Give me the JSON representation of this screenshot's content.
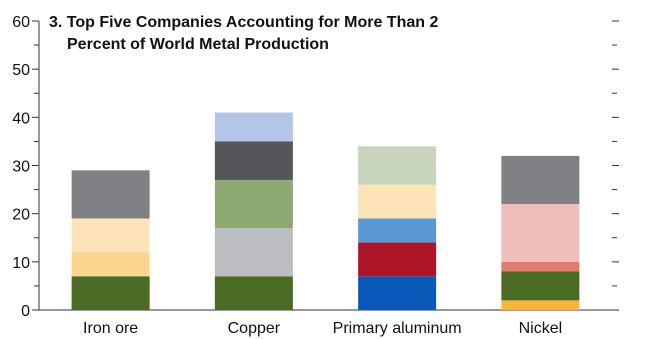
{
  "chart_data": {
    "type": "bar",
    "stacked": true,
    "title_lines": [
      "3. Top Five Companies Accounting for More Than 2",
      "Percent of World Metal Production"
    ],
    "xlabel": "",
    "ylabel": "",
    "ylim": [
      0,
      60
    ],
    "yticks": [
      0,
      10,
      20,
      30,
      40,
      50,
      60
    ],
    "minor_step": 5,
    "grid": false,
    "categories": [
      "Iron ore",
      "Copper",
      "Primary aluminum",
      "Nickel"
    ],
    "stacks": [
      {
        "category": "Iron ore",
        "segments": [
          {
            "value": 7,
            "color": "#4a6b24"
          },
          {
            "value": 5,
            "color": "#fdd48e"
          },
          {
            "value": 7,
            "color": "#fde3b8"
          },
          {
            "value": 10,
            "color": "#808184"
          }
        ]
      },
      {
        "category": "Copper",
        "segments": [
          {
            "value": 7,
            "color": "#4a6b24"
          },
          {
            "value": 10,
            "color": "#bbbdc0"
          },
          {
            "value": 10,
            "color": "#8fa973"
          },
          {
            "value": 8,
            "color": "#555658"
          },
          {
            "value": 6,
            "color": "#b3c6e8"
          }
        ]
      },
      {
        "category": "Primary aluminum",
        "segments": [
          {
            "value": 7,
            "color": "#0a58b8"
          },
          {
            "value": 7,
            "color": "#ad1626"
          },
          {
            "value": 5,
            "color": "#5b99d5"
          },
          {
            "value": 7,
            "color": "#fde3b8"
          },
          {
            "value": 8,
            "color": "#c9d4bd"
          }
        ]
      },
      {
        "category": "Nickel",
        "segments": [
          {
            "value": 2,
            "color": "#f9b43d"
          },
          {
            "value": 6,
            "color": "#4a6b24"
          },
          {
            "value": 2,
            "color": "#e2786e"
          },
          {
            "value": 12,
            "color": "#f1bdba"
          },
          {
            "value": 10,
            "color": "#808184"
          }
        ]
      }
    ]
  }
}
